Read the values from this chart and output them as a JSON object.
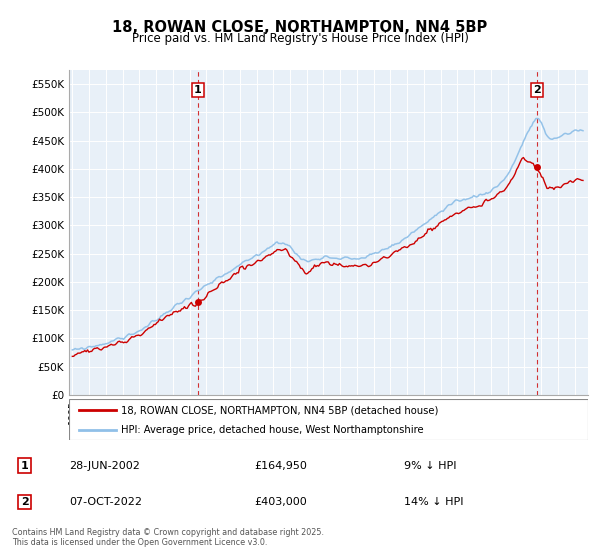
{
  "title": "18, ROWAN CLOSE, NORTHAMPTON, NN4 5BP",
  "subtitle": "Price paid vs. HM Land Registry's House Price Index (HPI)",
  "ylabel_ticks": [
    "£0",
    "£50K",
    "£100K",
    "£150K",
    "£200K",
    "£250K",
    "£300K",
    "£350K",
    "£400K",
    "£450K",
    "£500K",
    "£550K"
  ],
  "ytick_values": [
    0,
    50000,
    100000,
    150000,
    200000,
    250000,
    300000,
    350000,
    400000,
    450000,
    500000,
    550000
  ],
  "ylim": [
    0,
    575000
  ],
  "xlim_start": 1994.8,
  "xlim_end": 2025.8,
  "hpi_color": "#90c0e8",
  "price_color": "#cc0000",
  "legend_hpi": "HPI: Average price, detached house, West Northamptonshire",
  "legend_price": "18, ROWAN CLOSE, NORTHAMPTON, NN4 5BP (detached house)",
  "sale1_date": 2002.49,
  "sale1_price": 164950,
  "sale2_date": 2022.77,
  "sale2_price": 403000,
  "footnote_line1": "Contains HM Land Registry data © Crown copyright and database right 2025.",
  "footnote_line2": "This data is licensed under the Open Government Licence v3.0.",
  "table_row1": [
    "1",
    "28-JUN-2002",
    "£164,950",
    "9% ↓ HPI"
  ],
  "table_row2": [
    "2",
    "07-OCT-2022",
    "£403,000",
    "14% ↓ HPI"
  ],
  "background_color": "#e8f0f8"
}
